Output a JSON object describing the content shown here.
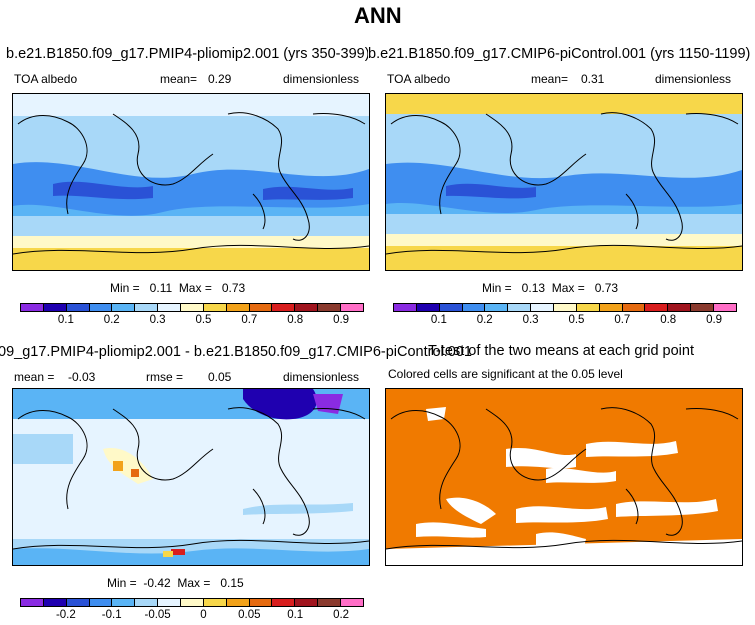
{
  "figure": {
    "title": "ANN"
  },
  "panels": [
    {
      "id": "case",
      "title": "b.e21.B1850.f09_g17.PMIP4-pliomip2.001 (yrs 350-399)",
      "variable": "TOA albedo",
      "mean_label": "mean=",
      "mean_value": "0.29",
      "units": "dimensionless",
      "min_max": "Min =   0.11  Max =   0.73",
      "colorbar": {
        "colors": [
          "#8a2be2",
          "#1f00b0",
          "#2a52d6",
          "#3f8ef0",
          "#5ab4f5",
          "#a8d8f8",
          "#e6f4ff",
          "#fff9c8",
          "#f7d74a",
          "#f2a21a",
          "#e56a10",
          "#d81e1e",
          "#a0141e",
          "#8a3a2e",
          "#ff6ec7"
        ],
        "ticks": [
          "0.1",
          "0.2",
          "0.3",
          "0.5",
          "0.7",
          "0.8",
          "0.9"
        ]
      }
    },
    {
      "id": "control",
      "title": "b.e21.B1850.f09_g17.CMIP6-piControl.001 (yrs 1150-1199)",
      "variable": "TOA albedo",
      "mean_label": "mean=",
      "mean_value": "0.31",
      "units": "dimensionless",
      "min_max": "Min =   0.13  Max =   0.73",
      "colorbar": {
        "colors": [
          "#8a2be2",
          "#1f00b0",
          "#2a52d6",
          "#3f8ef0",
          "#5ab4f5",
          "#a8d8f8",
          "#e6f4ff",
          "#fff9c8",
          "#f7d74a",
          "#f2a21a",
          "#e56a10",
          "#d81e1e",
          "#a0141e",
          "#8a3a2e",
          "#ff6ec7"
        ],
        "ticks": [
          "0.1",
          "0.2",
          "0.3",
          "0.5",
          "0.7",
          "0.8",
          "0.9"
        ]
      }
    },
    {
      "id": "difference",
      "title": "09_g17.PMIP4-pliomip2.001 - b.e21.B1850.f09_g17.CMIP6-piControl.001",
      "variable": "",
      "mean_label": "mean =",
      "mean_value": "-0.03",
      "rmse_label": "rmse =",
      "rmse_value": "0.05",
      "units": "dimensionless",
      "min_max": "Min =  -0.42  Max =   0.15",
      "colorbar": {
        "colors": [
          "#8a2be2",
          "#1f00b0",
          "#2a52d6",
          "#3f8ef0",
          "#5ab4f5",
          "#a8d8f8",
          "#e6f4ff",
          "#fff9c8",
          "#f7d74a",
          "#f2a21a",
          "#e56a10",
          "#d81e1e",
          "#a0141e",
          "#8a3a2e",
          "#ff6ec7"
        ],
        "ticks": [
          "-0.2",
          "-0.1",
          "-0.05",
          "0",
          "0.05",
          "0.1",
          "0.2"
        ]
      }
    },
    {
      "id": "ttest",
      "title": "T-test of the two means at each grid point",
      "subtitle": "Colored cells are significant at the 0.05 level",
      "fill_color": "#f07a00"
    }
  ]
}
